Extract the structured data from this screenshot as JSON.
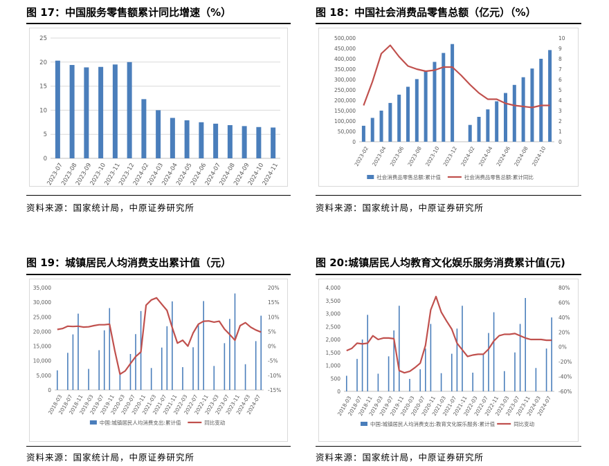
{
  "source_text": "资料来源：国家统计局，中原证券研究所",
  "colors": {
    "bar": "#4a7ebb",
    "line": "#c0504d",
    "grid": "#d9d9d9",
    "axis_text": "#595959"
  },
  "charts": [
    {
      "id": "fig17",
      "title": "图 17：中国服务零售额累计同比增速（%）",
      "chart_data": {
        "type": "bar",
        "categories": [
          "2023-07",
          "2023-08",
          "2023-09",
          "2023-10",
          "2023-11",
          "2023-12",
          "2024-02",
          "2024-03",
          "2024-04",
          "2024-05",
          "2024-06",
          "2024-07",
          "2024-08",
          "2024-09",
          "2024-10",
          "2024-11"
        ],
        "values": [
          20.3,
          19.4,
          18.9,
          19.0,
          19.5,
          20.0,
          12.3,
          10.0,
          8.4,
          7.9,
          7.5,
          7.2,
          6.9,
          6.7,
          6.5,
          6.4
        ],
        "ylim": [
          0,
          25
        ],
        "yticks": [
          "0",
          "5",
          "10",
          "15",
          "20",
          "25"
        ],
        "grid": true
      }
    },
    {
      "id": "fig18",
      "title": "图 18：中国社会消费品零售总额（亿元）（%）",
      "chart_data": {
        "type": "bar+line",
        "categories": [
          "2023-02",
          "2023-03",
          "2023-04",
          "2023-05",
          "2023-06",
          "2023-07",
          "2023-08",
          "2023-09",
          "2023-10",
          "2023-11",
          "2023-12",
          "2024-01",
          "2024-02",
          "2024-03",
          "2024-04",
          "2024-05",
          "2024-06",
          "2024-07",
          "2024-08",
          "2024-09",
          "2024-10",
          "2024-11"
        ],
        "xtick_labels": [
          "2023-02",
          "2023-04",
          "2023-06",
          "2023-08",
          "2023-10",
          "2023-12",
          "2024-02",
          "2024-04",
          "2024-06",
          "2024-08",
          "2024-10"
        ],
        "series": [
          {
            "name": "社会消费品零售总额:累计值",
            "type": "bar",
            "axis": "left",
            "values": [
              77000,
              115000,
              150000,
              187000,
              227000,
              265000,
              302000,
              342000,
              385000,
              428000,
              471000,
              null,
              81000,
              120000,
              156000,
              195000,
              235000,
              274000,
              311000,
              353000,
              400000,
              442000
            ]
          },
          {
            "name": "社会消费品零售总额:累计同比",
            "type": "line",
            "axis": "right",
            "values": [
              3.5,
              5.8,
              8.5,
              9.3,
              8.2,
              7.3,
              7.0,
              6.8,
              6.9,
              7.2,
              7.2,
              6.4,
              5.5,
              4.7,
              4.1,
              4.1,
              3.7,
              3.5,
              3.4,
              3.3,
              3.5,
              3.5
            ]
          }
        ],
        "ylim_left": [
          0,
          500000
        ],
        "yticks_left": [
          "0",
          "50,000",
          "100,000",
          "150,000",
          "200,000",
          "250,000",
          "300,000",
          "350,000",
          "400,000",
          "450,000",
          "500,000"
        ],
        "ylim_right": [
          0,
          10
        ],
        "yticks_right": [
          "0",
          "1",
          "2",
          "3",
          "4",
          "5",
          "6",
          "7",
          "8",
          "9",
          "10"
        ],
        "legend": "bottom",
        "grid": false
      }
    },
    {
      "id": "fig19",
      "title": "图 19：城镇居民人均消费支出累计值（元）",
      "chart_data": {
        "type": "bar+line",
        "categories": [
          "2018-03",
          "2018-05",
          "2018-07",
          "2018-09",
          "2018-11",
          "2019-01",
          "2019-03",
          "2019-05",
          "2019-07",
          "2019-09",
          "2019-11",
          "2020-01",
          "2020-03",
          "2020-05",
          "2020-07",
          "2020-09",
          "2020-11",
          "2021-01",
          "2021-03",
          "2021-05",
          "2021-07",
          "2021-09",
          "2021-11",
          "2022-01",
          "2022-03",
          "2022-05",
          "2022-07",
          "2022-09",
          "2022-11",
          "2023-01",
          "2023-03",
          "2023-05",
          "2023-07",
          "2023-09",
          "2023-11",
          "2024-01",
          "2024-03",
          "2024-05",
          "2024-07",
          "2024-09"
        ],
        "xtick_labels": [
          "2018-03",
          "2018-07",
          "2018-11",
          "2019-03",
          "2019-07",
          "2019-11",
          "2020-03",
          "2020-07",
          "2020-11",
          "2021-03",
          "2021-07",
          "2021-11",
          "2022-03",
          "2022-07",
          "2022-11",
          "2023-03",
          "2023-07",
          "2023-11",
          "2024-03",
          "2024-07"
        ],
        "series": [
          {
            "name": "中国:城镇居民人均消费支出:累计值",
            "type": "bar",
            "axis": "left",
            "values": [
              6700,
              null,
              12700,
              19000,
              26100,
              null,
              7200,
              null,
              13600,
              20400,
              28000,
              null,
              6000,
              null,
              12300,
              19100,
              27000,
              null,
              7500,
              null,
              14500,
              21800,
              30300,
              null,
              7800,
              null,
              14600,
              22400,
              30400,
              null,
              8200,
              null,
              16000,
              24300,
              33000,
              null,
              8800,
              null,
              16700,
              25400
            ]
          },
          {
            "name": "同比变动",
            "type": "line",
            "axis": "right",
            "values": [
              5.7,
              6.0,
              6.8,
              6.7,
              6.8,
              6.5,
              6.6,
              7.0,
              7.3,
              7.3,
              7.5,
              -1.5,
              -9.6,
              -8.5,
              -6.0,
              -3.6,
              -2.0,
              14.0,
              15.8,
              16.5,
              14.3,
              12.2,
              6.3,
              1.0,
              2.0,
              0.0,
              4.5,
              7.5,
              8.5,
              8.6,
              8.2,
              8.5,
              5.8,
              4.0,
              2.0,
              7.0,
              8.0,
              6.5,
              5.5,
              4.8
            ]
          }
        ],
        "ylim_left": [
          0,
          35000
        ],
        "yticks_left": [
          "0",
          "5,000",
          "10,000",
          "15,000",
          "20,000",
          "25,000",
          "30,000",
          "35,000"
        ],
        "ylim_right": [
          -15,
          20
        ],
        "yticks_right": [
          "-15%",
          "-10%",
          "-5%",
          "0%",
          "5%",
          "10%",
          "15%",
          "20%"
        ],
        "legend": "bottom",
        "grid": false
      }
    },
    {
      "id": "fig20",
      "title": "图 20:城镇居民人均教育文化娱乐服务消费累计值(元)",
      "chart_data": {
        "type": "bar+line",
        "categories": [
          "2018-03",
          "2018-05",
          "2018-07",
          "2018-09",
          "2018-11",
          "2019-01",
          "2019-03",
          "2019-05",
          "2019-07",
          "2019-09",
          "2019-11",
          "2020-01",
          "2020-03",
          "2020-05",
          "2020-07",
          "2020-09",
          "2020-11",
          "2021-01",
          "2021-03",
          "2021-05",
          "2021-07",
          "2021-09",
          "2021-11",
          "2022-01",
          "2022-03",
          "2022-05",
          "2022-07",
          "2022-09",
          "2022-11",
          "2023-01",
          "2023-03",
          "2023-05",
          "2023-07",
          "2023-09",
          "2023-11",
          "2024-01",
          "2024-03",
          "2024-05",
          "2024-07",
          "2024-09"
        ],
        "xtick_labels": [
          "2018-03",
          "2018-07",
          "2018-11",
          "2019-03",
          "2019-07",
          "2019-11",
          "2020-03",
          "2020-07",
          "2020-11",
          "2021-03",
          "2021-07",
          "2021-11",
          "2022-03",
          "2022-07",
          "2022-11",
          "2023-03",
          "2023-07",
          "2023-11",
          "2024-03",
          "2024-07"
        ],
        "series": [
          {
            "name": "中国:城镇居民人均消费支出:教育文化娱乐服务:累计值",
            "type": "bar",
            "axis": "left",
            "values": [
              600,
              null,
              1250,
              2000,
              2950,
              null,
              680,
              null,
              1350,
              2350,
              3300,
              null,
              480,
              null,
              850,
              1650,
              2600,
              null,
              700,
              null,
              1450,
              2420,
              3300,
              null,
              720,
              null,
              1450,
              2250,
              3050,
              null,
              780,
              null,
              1500,
              2600,
              3600,
              null,
              900,
              null,
              1650,
              2850
            ]
          },
          {
            "name": "同比变动",
            "type": "line",
            "axis": "right",
            "values": [
              -5,
              -2,
              5,
              4,
              5,
              15,
              10,
              12,
              12,
              11,
              -32,
              -35,
              -33,
              -28,
              -22,
              2,
              50,
              68,
              47,
              35,
              24,
              5,
              -4,
              -13,
              -11,
              -10,
              -10,
              -3,
              8,
              15,
              17,
              17,
              18,
              15,
              12,
              10,
              10,
              10,
              9,
              9
            ]
          }
        ],
        "ylim_left": [
          0,
          4000
        ],
        "yticks_left": [
          "0",
          "500",
          "1,000",
          "1,500",
          "2,000",
          "2,500",
          "3,000",
          "3,500",
          "4,000"
        ],
        "ylim_right": [
          -60,
          80
        ],
        "yticks_right": [
          "-60%",
          "-40%",
          "-20%",
          "0%",
          "20%",
          "40%",
          "60%",
          "80%"
        ],
        "legend": "bottom",
        "grid": false
      }
    }
  ]
}
